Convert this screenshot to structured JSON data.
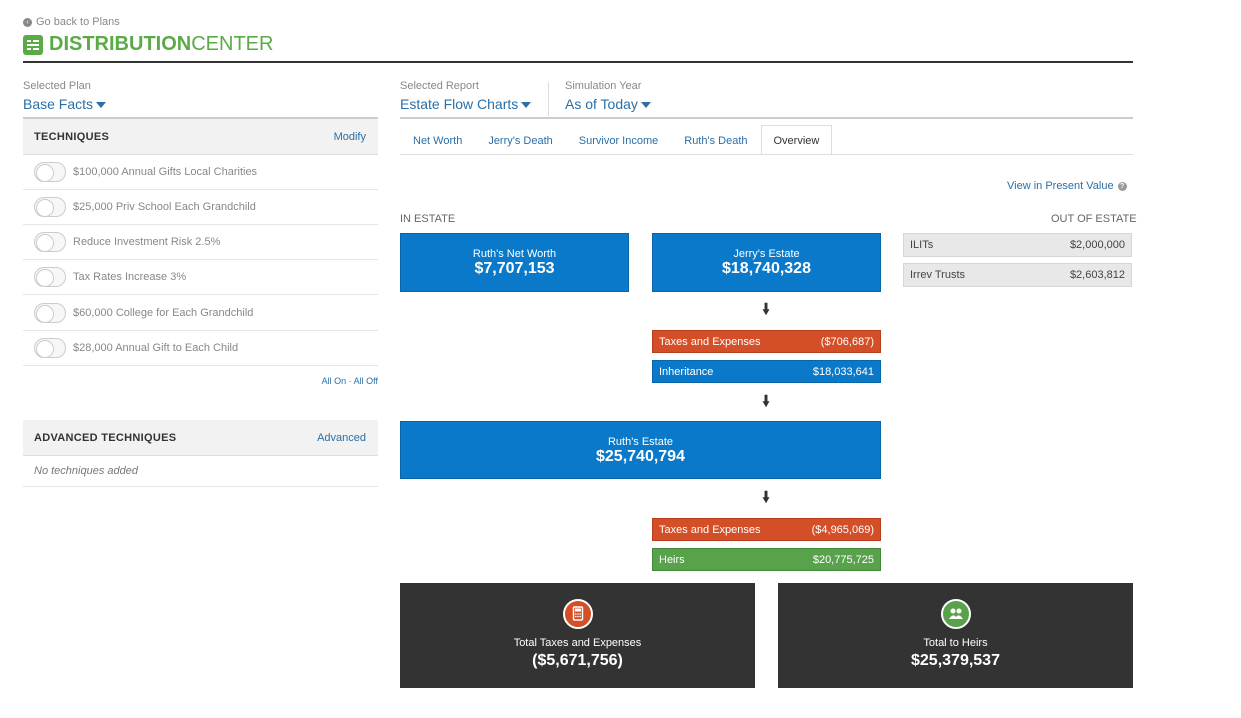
{
  "header": {
    "back_label": "Go back to Plans",
    "brand_bold": "DISTRIBUTION",
    "brand_light": "CENTER"
  },
  "selectors": {
    "plan": {
      "label": "Selected Plan",
      "value": "Base Facts"
    },
    "report": {
      "label": "Selected Report",
      "value": "Estate Flow Charts"
    },
    "year": {
      "label": "Simulation Year",
      "value": "As of Today"
    }
  },
  "techniques": {
    "title": "TECHNIQUES",
    "modify_label": "Modify",
    "items": [
      {
        "label": "$100,000 Annual Gifts Local Charities"
      },
      {
        "label": "$25,000 Priv School Each Grandchild"
      },
      {
        "label": "Reduce Investment Risk 2.5%"
      },
      {
        "label": "Tax Rates Increase 3%"
      },
      {
        "label": "$60,000 College for Each Grandchild"
      },
      {
        "label": "$28,000 Annual Gift to Each Child"
      }
    ],
    "all_on": "All On",
    "separator": "·",
    "all_off": "All Off"
  },
  "advanced": {
    "title": "ADVANCED TECHNIQUES",
    "link_label": "Advanced",
    "empty_text": "No techniques added"
  },
  "tabs": [
    {
      "label": "Net Worth"
    },
    {
      "label": "Jerry's Death"
    },
    {
      "label": "Survivor Income"
    },
    {
      "label": "Ruth's Death"
    },
    {
      "label": "Overview"
    }
  ],
  "view_pv_label": "View in Present Value",
  "in_estate_label": "IN ESTATE",
  "out_estate_label": "OUT OF ESTATE",
  "flow": {
    "ruth_net_worth": {
      "title": "Ruth's Net Worth",
      "value": "$7,707,153"
    },
    "jerry_estate": {
      "title": "Jerry's Estate",
      "value": "$18,740,328"
    },
    "taxes1": {
      "label": "Taxes and Expenses",
      "value": "($706,687)"
    },
    "inheritance": {
      "label": "Inheritance",
      "value": "$18,033,641"
    },
    "ruth_estate": {
      "title": "Ruth's Estate",
      "value": "$25,740,794"
    },
    "taxes2": {
      "label": "Taxes and Expenses",
      "value": "($4,965,069)"
    },
    "heirs": {
      "label": "Heirs",
      "value": "$20,775,725"
    }
  },
  "out_of_estate": [
    {
      "label": "ILITs",
      "value": "$2,000,000"
    },
    {
      "label": "Irrev Trusts",
      "value": "$2,603,812"
    }
  ],
  "totals": {
    "taxes": {
      "title": "Total Taxes and Expenses",
      "value": "($5,671,756)"
    },
    "heirs": {
      "title": "Total to Heirs",
      "value": "$25,379,537"
    }
  },
  "colors": {
    "brand_green": "#5aab47",
    "link_blue": "#2a6fa8",
    "flow_blue": "#0a79c9",
    "tax_red": "#d44f27",
    "heirs_green": "#58a24b",
    "dark_panel": "#333333"
  }
}
